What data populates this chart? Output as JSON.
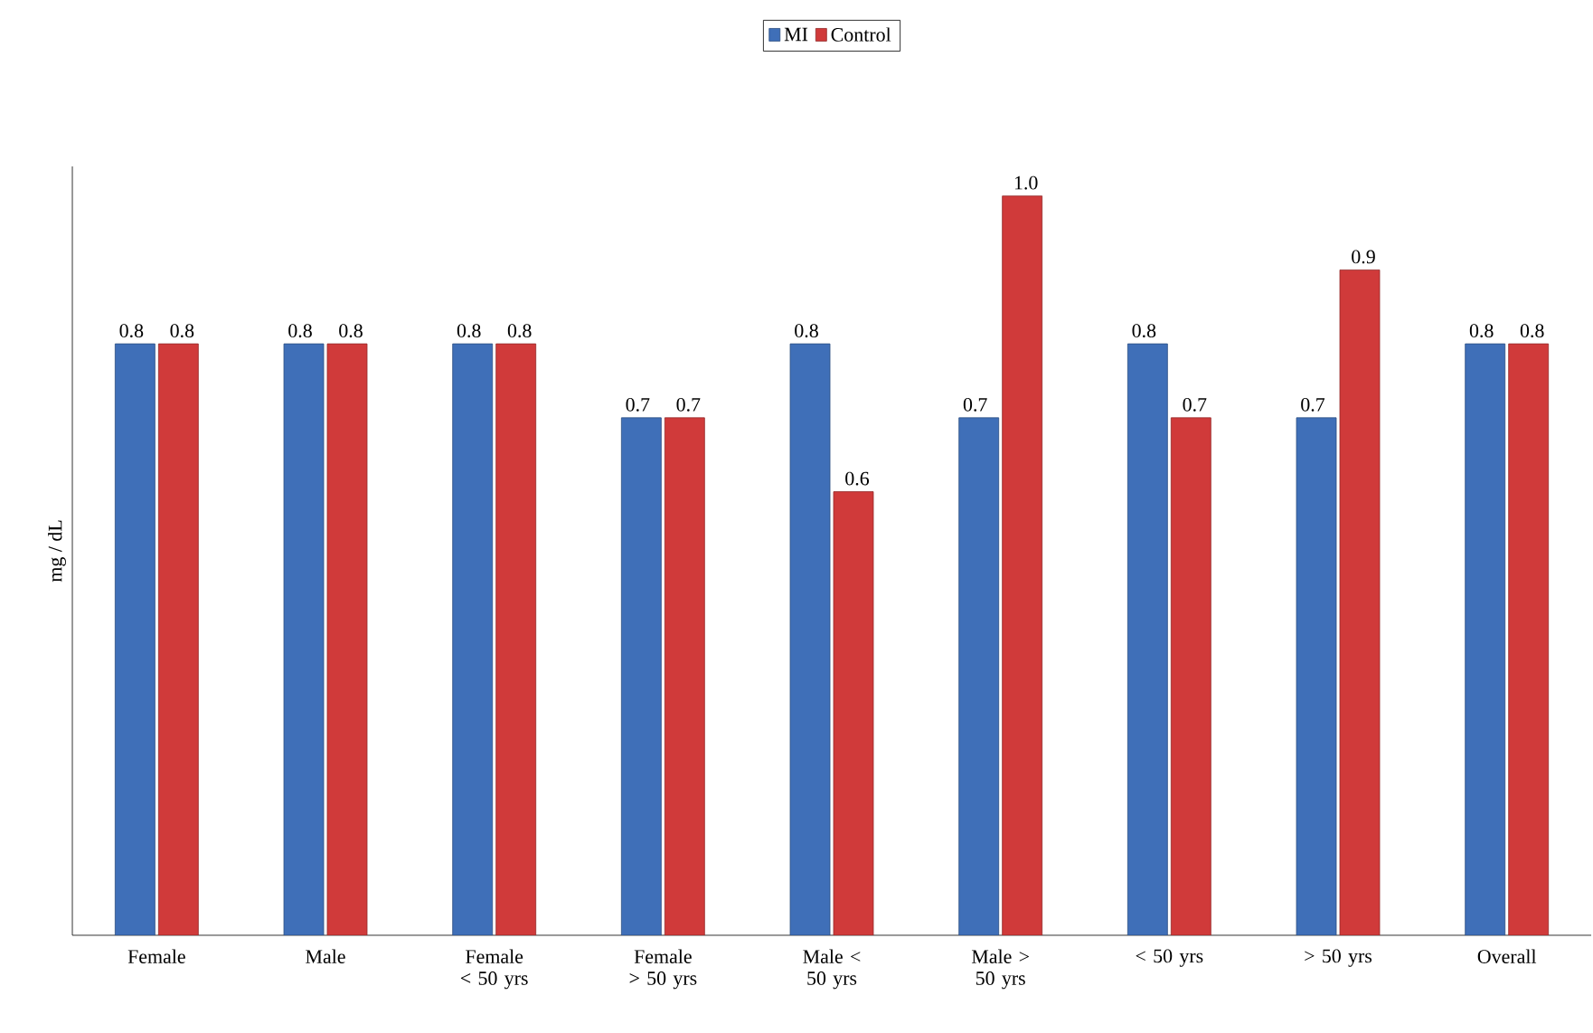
{
  "chart_data": {
    "type": "bar",
    "ylabel": "mg / dL",
    "legend": "top",
    "categories": [
      "Female",
      "Male",
      "Female < 50 yrs",
      "Female > 50 yrs",
      "Male < 50 yrs",
      "Male > 50 yrs",
      "< 50 yrs",
      "> 50 yrs",
      "Overall"
    ],
    "series": [
      {
        "name": "MI",
        "color": "#3f6fb8",
        "values": [
          0.8,
          0.8,
          0.8,
          0.7,
          0.8,
          0.7,
          0.8,
          0.7,
          0.8
        ],
        "value_labels": [
          "0.8",
          "0.8",
          "0.8",
          "0.7",
          "0.8",
          "0.7",
          "0.8",
          "0.7",
          "0.8"
        ]
      },
      {
        "name": "Control",
        "color": "#d03a3a",
        "values": [
          0.8,
          0.8,
          0.8,
          0.7,
          0.6,
          1.0,
          0.7,
          0.9,
          0.8
        ],
        "value_labels": [
          "0.8",
          "0.8",
          "0.8",
          "0.7",
          "0.6",
          "1.0",
          "0.7",
          "0.9",
          "0.8"
        ]
      }
    ]
  }
}
